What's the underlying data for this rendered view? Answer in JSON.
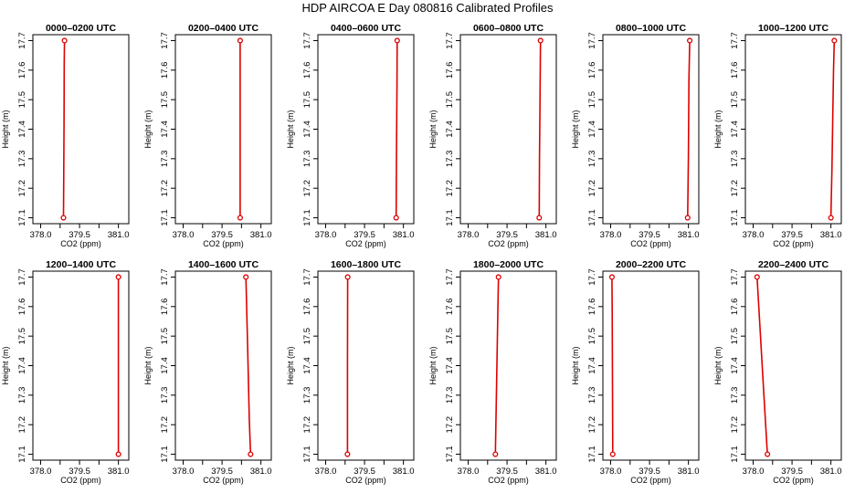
{
  "title": "HDP AIRCOA E  Day 080816  Calibrated Profiles",
  "colors": {
    "profile": "#dd0000",
    "axis": "#000000",
    "background": "#ffffff"
  },
  "axes": {
    "xlabel": "CO2 (ppm)",
    "ylabel": "Height (m)",
    "xlim": [
      377.7,
      381.4
    ],
    "ylim": [
      17.08,
      17.72
    ],
    "xticks": [
      378.0,
      378.75,
      379.5,
      380.25,
      381.0
    ],
    "xtick_labels": [
      "378.0",
      "",
      "379.5",
      "",
      "381.0"
    ],
    "yticks": [
      17.1,
      17.2,
      17.3,
      17.4,
      17.5,
      17.6,
      17.7
    ],
    "ytick_labels": [
      "17.1",
      "17.2",
      "17.3",
      "17.4",
      "17.5",
      "17.6",
      "17.7"
    ]
  },
  "chart_data": [
    {
      "type": "line",
      "title": "0000–0200 UTC",
      "profile": [
        {
          "x": 378.88,
          "y": 17.1
        },
        {
          "x": 378.89,
          "y": 17.25
        },
        {
          "x": 378.9,
          "y": 17.42
        },
        {
          "x": 378.91,
          "y": 17.62
        },
        {
          "x": 378.92,
          "y": 17.7
        }
      ]
    },
    {
      "type": "line",
      "title": "0200–0400 UTC",
      "profile": [
        {
          "x": 380.2,
          "y": 17.1
        },
        {
          "x": 380.2,
          "y": 17.4
        },
        {
          "x": 380.2,
          "y": 17.7
        }
      ]
    },
    {
      "type": "line",
      "title": "0400–0600 UTC",
      "profile": [
        {
          "x": 380.72,
          "y": 17.1
        },
        {
          "x": 380.73,
          "y": 17.3
        },
        {
          "x": 380.75,
          "y": 17.55
        },
        {
          "x": 380.76,
          "y": 17.7
        }
      ]
    },
    {
      "type": "line",
      "title": "0600–0800 UTC",
      "profile": [
        {
          "x": 380.74,
          "y": 17.1
        },
        {
          "x": 380.75,
          "y": 17.3
        },
        {
          "x": 380.77,
          "y": 17.47
        },
        {
          "x": 380.79,
          "y": 17.7
        }
      ]
    },
    {
      "type": "line",
      "title": "0800–1000 UTC",
      "profile": [
        {
          "x": 380.97,
          "y": 17.1
        },
        {
          "x": 381.0,
          "y": 17.3
        },
        {
          "x": 381.02,
          "y": 17.57
        },
        {
          "x": 381.05,
          "y": 17.7
        }
      ]
    },
    {
      "type": "line",
      "title": "1000–1200 UTC",
      "profile": [
        {
          "x": 381.0,
          "y": 17.1
        },
        {
          "x": 381.04,
          "y": 17.27
        },
        {
          "x": 381.07,
          "y": 17.43
        },
        {
          "x": 381.1,
          "y": 17.6
        },
        {
          "x": 381.13,
          "y": 17.7
        }
      ]
    },
    {
      "type": "line",
      "title": "1200–1400 UTC",
      "profile": [
        {
          "x": 381.0,
          "y": 17.1
        },
        {
          "x": 381.0,
          "y": 17.4
        },
        {
          "x": 381.0,
          "y": 17.7
        }
      ]
    },
    {
      "type": "line",
      "title": "1400–1600 UTC",
      "profile": [
        {
          "x": 380.42,
          "y": 17.7
        },
        {
          "x": 380.49,
          "y": 17.45
        },
        {
          "x": 380.55,
          "y": 17.22
        },
        {
          "x": 380.6,
          "y": 17.1
        }
      ]
    },
    {
      "type": "line",
      "title": "1600–1800 UTC",
      "profile": [
        {
          "x": 378.84,
          "y": 17.1
        },
        {
          "x": 378.84,
          "y": 17.4
        },
        {
          "x": 378.85,
          "y": 17.7
        }
      ]
    },
    {
      "type": "line",
      "title": "1800–2000 UTC",
      "profile": [
        {
          "x": 379.05,
          "y": 17.1
        },
        {
          "x": 379.1,
          "y": 17.35
        },
        {
          "x": 379.15,
          "y": 17.6
        },
        {
          "x": 379.17,
          "y": 17.7
        }
      ]
    },
    {
      "type": "line",
      "title": "2000–2200 UTC",
      "profile": [
        {
          "x": 378.08,
          "y": 17.1
        },
        {
          "x": 378.07,
          "y": 17.35
        },
        {
          "x": 378.06,
          "y": 17.58
        },
        {
          "x": 378.05,
          "y": 17.7
        }
      ]
    },
    {
      "type": "line",
      "title": "2200–2400 UTC",
      "profile": [
        {
          "x": 378.55,
          "y": 17.1
        },
        {
          "x": 378.4,
          "y": 17.32
        },
        {
          "x": 378.25,
          "y": 17.55
        },
        {
          "x": 378.15,
          "y": 17.7
        }
      ]
    }
  ]
}
